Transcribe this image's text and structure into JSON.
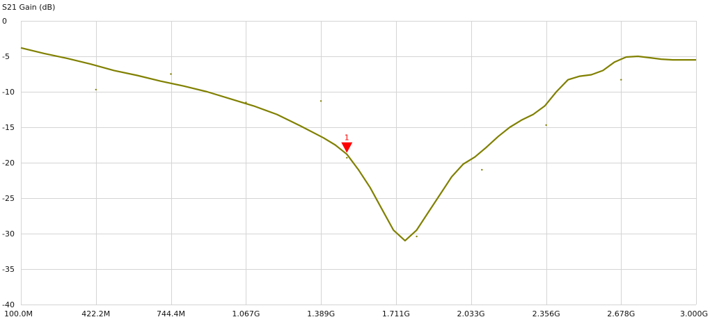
{
  "chart_data": {
    "type": "line",
    "ylabel": "S21 Gain (dB)",
    "xlim": [
      0.1,
      3.0
    ],
    "ylim": [
      -40,
      0
    ],
    "grid": true,
    "x_ticks": [
      0.1,
      0.4222,
      0.7444,
      1.067,
      1.389,
      1.711,
      2.033,
      2.356,
      2.678,
      3.0
    ],
    "x_tick_labels": [
      "100.0M",
      "422.2M",
      "744.4M",
      "1.067G",
      "1.389G",
      "1.711G",
      "2.033G",
      "2.356G",
      "2.678G",
      "3.000G"
    ],
    "y_ticks": [
      0,
      -5,
      -10,
      -15,
      -20,
      -25,
      -30,
      -35,
      -40
    ],
    "y_tick_labels": [
      "0",
      "-5",
      "-10",
      "-15",
      "-20",
      "-25",
      "-30",
      "-35",
      "-40"
    ],
    "line_color": "#808000",
    "marker_color": "#ff0000",
    "series": [
      {
        "x": [
          0.1,
          0.2,
          0.3,
          0.4,
          0.5,
          0.6,
          0.7,
          0.8,
          0.9,
          1.0,
          1.1,
          1.2,
          1.3,
          1.4,
          1.45,
          1.5,
          1.55,
          1.6,
          1.65,
          1.7,
          1.75,
          1.8,
          1.85,
          1.9,
          1.95,
          2.0,
          2.05,
          2.1,
          2.15,
          2.2,
          2.25,
          2.3,
          2.35,
          2.4,
          2.45,
          2.5,
          2.55,
          2.6,
          2.65,
          2.7,
          2.75,
          2.8,
          2.85,
          2.9,
          2.95,
          3.0
        ],
        "y": [
          -3.8,
          -4.6,
          -5.3,
          -6.1,
          -7.0,
          -7.7,
          -8.5,
          -9.2,
          -10.0,
          -11.0,
          -12.0,
          -13.2,
          -14.8,
          -16.5,
          -17.5,
          -18.8,
          -21.0,
          -23.5,
          -26.5,
          -29.5,
          -31.0,
          -29.5,
          -27.0,
          -24.5,
          -22.0,
          -20.2,
          -19.2,
          -17.8,
          -16.3,
          -15.0,
          -14.0,
          -13.2,
          -12.0,
          -10.0,
          -8.3,
          -7.8,
          -7.6,
          -7.0,
          -5.8,
          -5.1,
          -5.0,
          -5.2,
          -5.4,
          -5.5,
          -5.5,
          -5.5
        ],
        "points": [
          [
            0.4222,
            -9.7
          ],
          [
            0.7444,
            -7.5
          ],
          [
            1.067,
            -11.5
          ],
          [
            1.389,
            -11.3
          ],
          [
            1.5,
            -19.3
          ],
          [
            1.8,
            -30.4
          ],
          [
            2.08,
            -21.0
          ],
          [
            2.356,
            -14.7
          ],
          [
            2.678,
            -8.3
          ]
        ]
      }
    ],
    "markers": [
      {
        "label": "1",
        "x": 1.5,
        "y": -18.6
      }
    ]
  }
}
